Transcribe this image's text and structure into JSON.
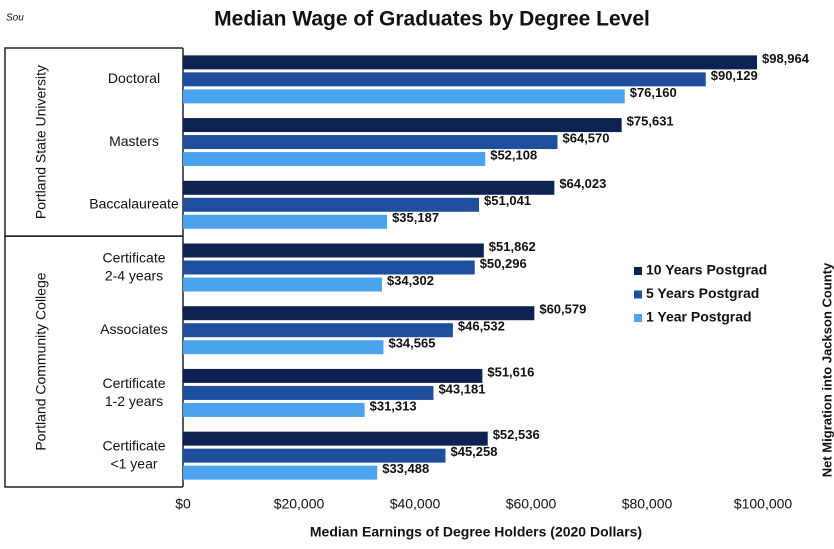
{
  "chart_data": {
    "type": "bar",
    "orientation": "horizontal",
    "title": "Median Wage of Graduates by Degree Level",
    "source_fragment": "Sou",
    "side_text": "Net Migration into Jackson County",
    "x_label": "Median Earnings of Degree Holders (2020 Dollars)",
    "groups": [
      {
        "name": "Portland State University",
        "categories": [
          "Doctoral",
          "Masters",
          "Baccalaureate"
        ]
      },
      {
        "name": "Portland Community College",
        "categories": [
          "Certificate\n2-4 years",
          "Associates",
          "Certificate\n1-2 years",
          "Certificate\n<1 year"
        ]
      }
    ],
    "series": [
      {
        "name": "10 Years Postgrad",
        "color": "#0d2250",
        "values": [
          98964,
          75631,
          64023,
          51862,
          60579,
          51616,
          52536
        ],
        "value_labels": [
          "$98,964",
          "$75,631",
          "$64,023",
          "$51,862",
          "$60,579",
          "$51,616",
          "$52,536"
        ]
      },
      {
        "name": "5 Years Postgrad",
        "color": "#1f4e9c",
        "values": [
          90129,
          64570,
          51041,
          50296,
          46532,
          43181,
          45258
        ],
        "value_labels": [
          "$90,129",
          "$64,570",
          "$51,041",
          "$50,296",
          "$46,532",
          "$43,181",
          "$45,258"
        ]
      },
      {
        "name": "1 Year Postgrad",
        "color": "#4aa3ec",
        "values": [
          76160,
          52108,
          35187,
          34302,
          34565,
          31313,
          33488
        ],
        "value_labels": [
          "$76,160",
          "$52,108",
          "$35,187",
          "$34,302",
          "$34,565",
          "$31,313",
          "$33,488"
        ]
      }
    ],
    "xlim": [
      0,
      100000
    ],
    "xticks": [
      {
        "value": 0,
        "label": "$0"
      },
      {
        "value": 20000,
        "label": "$20,000"
      },
      {
        "value": 40000,
        "label": "$40,000"
      },
      {
        "value": 60000,
        "label": "$60,000"
      },
      {
        "value": 80000,
        "label": "$80,000"
      },
      {
        "value": 100000,
        "label": "$100,000"
      }
    ],
    "grid": false,
    "legend": "right"
  }
}
